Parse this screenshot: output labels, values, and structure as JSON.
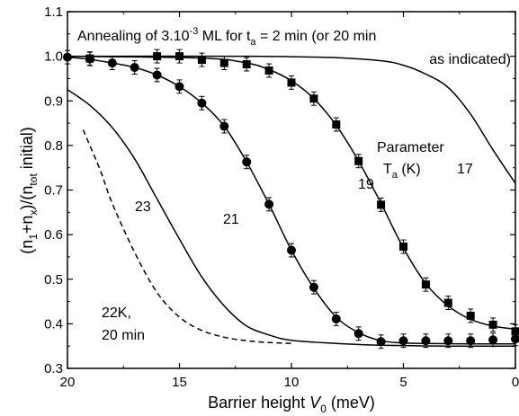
{
  "chart_data": {
    "type": "scatter",
    "xlim": [
      20,
      0
    ],
    "ylim": [
      0.3,
      1.1
    ],
    "x_reversed": true,
    "grid": false,
    "x_ticks": [
      20,
      15,
      10,
      5,
      0
    ],
    "y_ticks": [
      0.3,
      0.4,
      0.5,
      0.6,
      0.7,
      0.8,
      0.9,
      1.0,
      1.1
    ],
    "xlabel": {
      "main": "Barrier height ",
      "var": "V",
      "sub": "0",
      "unit": " (meV)"
    },
    "ylabel": {
      "p1": "(n",
      "s1": "1",
      "p2": "+n",
      "s2": "x",
      "p3": ")/(n",
      "s3": "tot",
      "p4": " initial)"
    },
    "annotations": {
      "title_a": "Annealing of 3.10",
      "title_exp": "-3",
      "title_b": " ML for t",
      "title_sub": "a",
      "title_c": " = 2 min (or 20 min",
      "title_line2": "as indicated)",
      "param_line1": "Parameter",
      "param_T": "T",
      "param_sub": "a",
      "param_unit": " (K)",
      "label_17": "17",
      "label_19": "19",
      "label_21": "21",
      "label_23": "23",
      "label_22_line1": "22K,",
      "label_22_line2": "20 min"
    },
    "series": [
      {
        "name": "19",
        "marker": "square",
        "points": [
          [
            19,
            0.995,
            0.015
          ],
          [
            16,
            1.0,
            0.015
          ],
          [
            15,
            1.0,
            0.015
          ],
          [
            14,
            0.992,
            0.015
          ],
          [
            13,
            0.985,
            0.015
          ],
          [
            12,
            0.982,
            0.015
          ],
          [
            11,
            0.968,
            0.015
          ],
          [
            10,
            0.941,
            0.015
          ],
          [
            9,
            0.905,
            0.015
          ],
          [
            8,
            0.847,
            0.015
          ],
          [
            7,
            0.765,
            0.015
          ],
          [
            6,
            0.667,
            0.015
          ],
          [
            5,
            0.573,
            0.015
          ],
          [
            4,
            0.488,
            0.015
          ],
          [
            3,
            0.447,
            0.015
          ],
          [
            2,
            0.418,
            0.015
          ],
          [
            1,
            0.398,
            0.015
          ],
          [
            0,
            0.383,
            0.015
          ]
        ]
      },
      {
        "name": "21",
        "marker": "circle",
        "points": [
          [
            20,
            0.998,
            0.015
          ],
          [
            19,
            0.994,
            0.015
          ],
          [
            18,
            0.985,
            0.015
          ],
          [
            17,
            0.975,
            0.015
          ],
          [
            16,
            0.958,
            0.015
          ],
          [
            15,
            0.932,
            0.015
          ],
          [
            14,
            0.895,
            0.015
          ],
          [
            13,
            0.843,
            0.015
          ],
          [
            12,
            0.763,
            0.015
          ],
          [
            11,
            0.668,
            0.015
          ],
          [
            10,
            0.565,
            0.015
          ],
          [
            9,
            0.482,
            0.015
          ],
          [
            8,
            0.411,
            0.015
          ],
          [
            7,
            0.378,
            0.015
          ],
          [
            6,
            0.36,
            0.015
          ],
          [
            5,
            0.362,
            0.015
          ],
          [
            4,
            0.362,
            0.015
          ],
          [
            3,
            0.362,
            0.015
          ],
          [
            2,
            0.362,
            0.015
          ],
          [
            1,
            0.364,
            0.015
          ],
          [
            0,
            0.366,
            0.015
          ]
        ]
      }
    ],
    "curves": [
      {
        "name": "17",
        "style": "solid",
        "points": [
          [
            20,
            1.0
          ],
          [
            12,
            1.0
          ],
          [
            10,
            0.999
          ],
          [
            8,
            0.997
          ],
          [
            6,
            0.99
          ],
          [
            5,
            0.98
          ],
          [
            4,
            0.96
          ],
          [
            3,
            0.93
          ],
          [
            2,
            0.87
          ],
          [
            1,
            0.79
          ],
          [
            0,
            0.715
          ]
        ]
      },
      {
        "name": "19",
        "style": "solid",
        "points": [
          [
            20,
            1.0
          ],
          [
            14,
            0.996
          ],
          [
            12,
            0.985
          ],
          [
            11,
            0.97
          ],
          [
            10,
            0.945
          ],
          [
            9,
            0.905
          ],
          [
            8,
            0.845
          ],
          [
            7,
            0.765
          ],
          [
            6,
            0.67
          ],
          [
            5,
            0.57
          ],
          [
            4,
            0.49
          ],
          [
            3,
            0.44
          ],
          [
            2,
            0.41
          ],
          [
            1,
            0.395
          ],
          [
            0,
            0.388
          ]
        ]
      },
      {
        "name": "21",
        "style": "solid",
        "points": [
          [
            20,
            0.998
          ],
          [
            19,
            0.993
          ],
          [
            18,
            0.985
          ],
          [
            17,
            0.975
          ],
          [
            16,
            0.958
          ],
          [
            15,
            0.932
          ],
          [
            14,
            0.895
          ],
          [
            13,
            0.843
          ],
          [
            12,
            0.763
          ],
          [
            11,
            0.668
          ],
          [
            10,
            0.565
          ],
          [
            9,
            0.48
          ],
          [
            8,
            0.415
          ],
          [
            7,
            0.38
          ],
          [
            6,
            0.362
          ],
          [
            5,
            0.357
          ],
          [
            4,
            0.356
          ],
          [
            2,
            0.355
          ],
          [
            0,
            0.355
          ]
        ]
      },
      {
        "name": "23",
        "style": "solid",
        "points": [
          [
            20,
            0.925
          ],
          [
            19,
            0.89
          ],
          [
            18,
            0.84
          ],
          [
            17,
            0.77
          ],
          [
            16,
            0.68
          ],
          [
            15,
            0.59
          ],
          [
            14,
            0.505
          ],
          [
            13,
            0.44
          ],
          [
            12,
            0.395
          ],
          [
            11,
            0.375
          ],
          [
            10,
            0.363
          ],
          [
            8,
            0.356
          ],
          [
            6,
            0.352
          ],
          [
            3,
            0.35
          ],
          [
            0,
            0.35
          ]
        ]
      },
      {
        "name": "22K, 20 min",
        "style": "dashed",
        "points": [
          [
            19.3,
            0.835
          ],
          [
            19,
            0.8
          ],
          [
            18.5,
            0.74
          ],
          [
            18,
            0.67
          ],
          [
            17,
            0.56
          ],
          [
            16,
            0.47
          ],
          [
            15,
            0.415
          ],
          [
            14,
            0.385
          ],
          [
            13,
            0.37
          ],
          [
            12,
            0.362
          ],
          [
            11,
            0.358
          ],
          [
            10,
            0.356
          ]
        ]
      }
    ]
  }
}
